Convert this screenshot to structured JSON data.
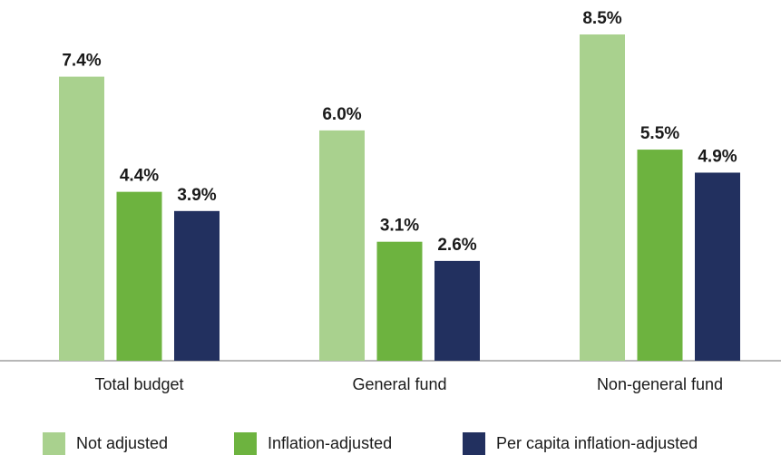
{
  "chart_data": {
    "type": "bar",
    "categories": [
      "Total budget",
      "General fund",
      "Non-general fund"
    ],
    "series": [
      {
        "name": "Not adjusted",
        "color": "#a9d18e",
        "values": [
          7.4,
          6.0,
          8.5
        ],
        "value_labels": [
          "7.4%",
          "6.0%",
          "8.5%"
        ]
      },
      {
        "name": "Inflation-adjusted",
        "color": "#6db33f",
        "values": [
          4.4,
          3.1,
          5.5
        ],
        "value_labels": [
          "4.4%",
          "3.1%",
          "5.5%"
        ]
      },
      {
        "name": "Per capita inflation-adjusted",
        "color": "#22305f",
        "values": [
          3.9,
          2.6,
          4.9
        ],
        "value_labels": [
          "3.9%",
          "2.6%",
          "4.9%"
        ]
      }
    ]
  }
}
